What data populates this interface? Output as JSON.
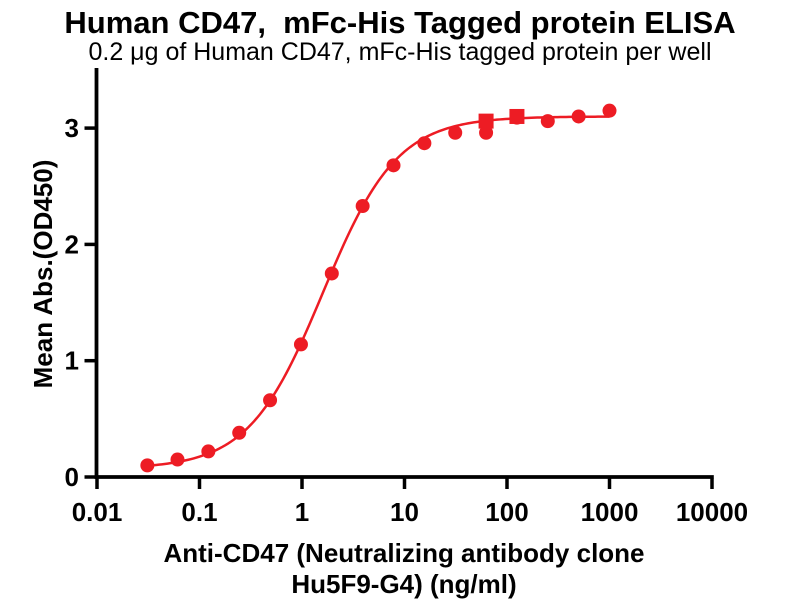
{
  "chart_data": {
    "type": "line",
    "title": "Human CD47,  mFc-His Tagged protein ELISA",
    "subtitle": "0.2 μg of Human CD47, mFc-His tagged protein per well",
    "xlabel_line1": "Anti-CD47 (Neutralizing antibody clone",
    "xlabel_line2": "Hu5F9-G4) (ng/ml)",
    "ylabel": "Mean Abs.(OD450)",
    "x_scale": "log10",
    "xlim": [
      0.01,
      10000
    ],
    "ylim": [
      0,
      3.5
    ],
    "x_ticks": [
      0.01,
      0.1,
      1,
      10,
      100,
      1000,
      10000
    ],
    "x_tick_labels": [
      "0.01",
      "0.1",
      "1",
      "10",
      "100",
      "1000",
      "10000"
    ],
    "y_ticks": [
      0,
      1,
      2,
      3
    ],
    "y_tick_labels": [
      "0",
      "1",
      "2",
      "3"
    ],
    "grid": false,
    "legend": "none",
    "series": [
      {
        "name": "anti-cd47-titration-circles",
        "marker": "circle",
        "color": "#ED1C24",
        "x": [
          0.031,
          0.061,
          0.122,
          0.244,
          0.488,
          0.977,
          1.953,
          3.906,
          7.813,
          15.625,
          31.25,
          62.5,
          125,
          250,
          500,
          1000
        ],
        "y": [
          0.1,
          0.15,
          0.22,
          0.38,
          0.66,
          1.14,
          1.75,
          2.33,
          2.68,
          2.87,
          2.96,
          2.96,
          3.09,
          3.06,
          3.1,
          3.15
        ]
      },
      {
        "name": "replicate-points-squares",
        "marker": "square",
        "color": "#ED1C24",
        "x": [
          62.5,
          125
        ],
        "y": [
          3.06,
          3.1
        ]
      }
    ],
    "fit_curve": {
      "model": "4PL",
      "bottom": 0.07,
      "top": 3.1,
      "ec50_ng_ml": 1.6,
      "hill": 1.2,
      "x_range": [
        0.031,
        1000
      ],
      "color": "#ED1C24"
    },
    "colors": {
      "series": "#ED1C24",
      "axis": "#000000",
      "background": "#FFFFFF"
    }
  }
}
